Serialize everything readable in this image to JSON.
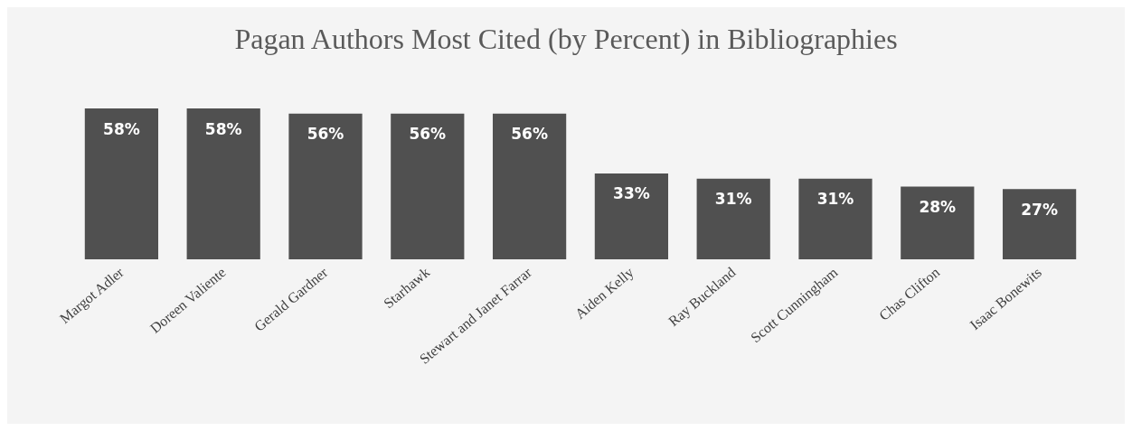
{
  "chart_data": {
    "type": "bar",
    "title": "Pagan Authors Most Cited (by Percent) in Bibliographies",
    "categories": [
      "Margot Adler",
      "Doreen Valiente",
      "Gerald Gardner",
      "Starhawk",
      "Stewart and Janet Farrar",
      "Aiden Kelly",
      "Ray Buckland",
      "Scott Cunningham",
      "Chas Clifton",
      "Isaac Bonewits"
    ],
    "values": [
      58,
      58,
      56,
      56,
      56,
      33,
      31,
      31,
      28,
      27
    ],
    "value_labels": [
      "58%",
      "58%",
      "56%",
      "56%",
      "56%",
      "33%",
      "31%",
      "31%",
      "28%",
      "27%"
    ],
    "color": "#505050"
  }
}
